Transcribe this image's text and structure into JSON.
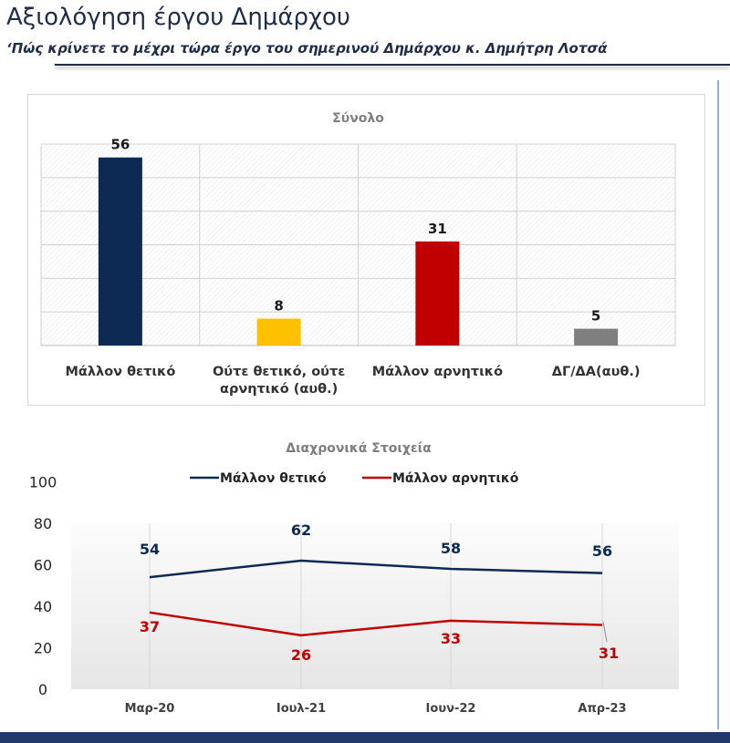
{
  "header": {
    "title": "Αξιολόγηση έργου Δημάρχου",
    "subtitle": "‘Πώς κρίνετε το μέχρι τώρα έργο του σημερινού Δημάρχου κ. Δημήτρη Λοτσά"
  },
  "colors": {
    "positive": "#0d2a55",
    "neither": "#ffc000",
    "negative": "#c00000",
    "dkna": "#7f7f7f"
  },
  "chart_data": [
    {
      "type": "bar",
      "title": "Σύνολο",
      "categories": [
        [
          "Μάλλον θετικό"
        ],
        [
          "Ούτε θετικό, ούτε",
          "αρνητικό (αυθ.)"
        ],
        [
          "Μάλλον αρνητικό"
        ],
        [
          "ΔΓ/ΔΑ(αυθ.)"
        ]
      ],
      "values": [
        56,
        8,
        31,
        5
      ],
      "colors": [
        "#0d2a55",
        "#ffc000",
        "#c00000",
        "#7f7f7f"
      ],
      "ylim": [
        0,
        60
      ],
      "grid": true
    },
    {
      "type": "line",
      "title": "Διαχρονικά Στοιχεία",
      "x": [
        "Μαρ-20",
        "Ιουλ-21",
        "Ιουν-22",
        "Απρ-23"
      ],
      "ylim": [
        0,
        100
      ],
      "yticks": [
        0,
        20,
        40,
        60,
        80,
        100
      ],
      "legend_position": "top",
      "series": [
        {
          "name": "Μάλλον θετικό",
          "values": [
            54,
            62,
            58,
            56
          ],
          "color": "#0d2a55"
        },
        {
          "name": "Μάλλον αρνητικό",
          "values": [
            37,
            26,
            33,
            31
          ],
          "color": "#c00000"
        }
      ]
    }
  ]
}
